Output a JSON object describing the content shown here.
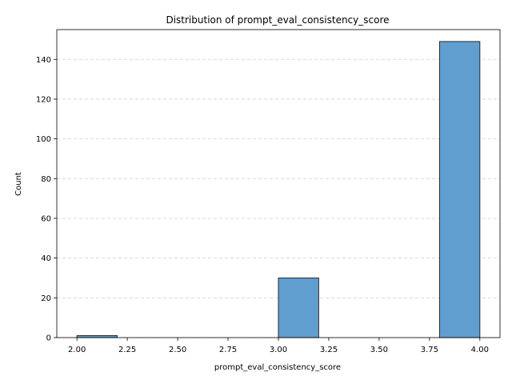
{
  "chart_data": {
    "type": "bar",
    "title": "Distribution of prompt_eval_consistency_score",
    "xlabel": "prompt_eval_consistency_score",
    "ylabel": "Count",
    "xlim": [
      1.9,
      4.1
    ],
    "ylim": [
      0,
      155
    ],
    "xticks": [
      "2.00",
      "2.25",
      "2.50",
      "2.75",
      "3.00",
      "3.25",
      "3.50",
      "3.75",
      "4.00"
    ],
    "yticks": [
      "0",
      "20",
      "40",
      "60",
      "80",
      "100",
      "120",
      "140"
    ],
    "grid": {
      "y": true,
      "x": false,
      "style": "dashed"
    },
    "bar_color": "#5f9ecf",
    "edge_color": "#2b2b2b",
    "bins": [
      {
        "start": 2.0,
        "end": 2.2,
        "count": 1
      },
      {
        "start": 2.2,
        "end": 2.4,
        "count": 0
      },
      {
        "start": 2.4,
        "end": 2.6,
        "count": 0
      },
      {
        "start": 2.6,
        "end": 2.8,
        "count": 0
      },
      {
        "start": 2.8,
        "end": 3.0,
        "count": 0
      },
      {
        "start": 3.0,
        "end": 3.2,
        "count": 30
      },
      {
        "start": 3.2,
        "end": 3.4,
        "count": 0
      },
      {
        "start": 3.4,
        "end": 3.6,
        "count": 0
      },
      {
        "start": 3.6,
        "end": 3.8,
        "count": 0
      },
      {
        "start": 3.8,
        "end": 4.0,
        "count": 149
      }
    ]
  }
}
